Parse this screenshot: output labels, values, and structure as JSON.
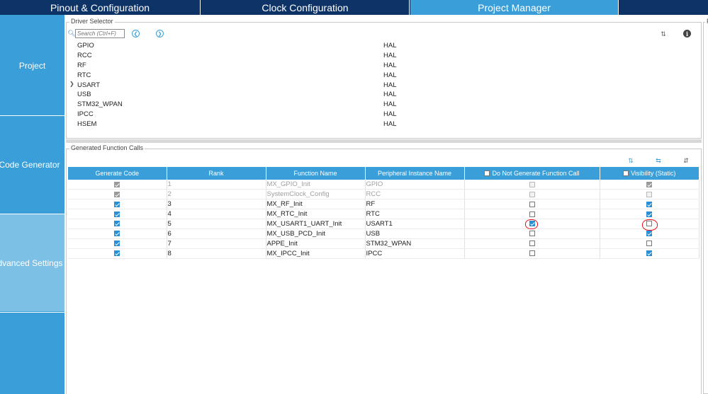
{
  "tabs": {
    "pinout": "Pinout & Configuration",
    "clock": "Clock Configuration",
    "project_manager": "Project Manager"
  },
  "sidebar": {
    "project": "Project",
    "code_generator": "Code Generator",
    "advanced_settings": "Advanced Settings"
  },
  "driver_selector": {
    "title": "Driver Selector",
    "search_placeholder": "Search (Ctrl+F)",
    "rows": [
      {
        "name": "GPIO",
        "mode": "HAL",
        "expandable": false
      },
      {
        "name": "RCC",
        "mode": "HAL",
        "expandable": false
      },
      {
        "name": "RF",
        "mode": "HAL",
        "expandable": false
      },
      {
        "name": "RTC",
        "mode": "HAL",
        "expandable": false
      },
      {
        "name": "USART",
        "mode": "HAL",
        "expandable": true
      },
      {
        "name": "USB",
        "mode": "HAL",
        "expandable": false
      },
      {
        "name": "STM32_WPAN",
        "mode": "HAL",
        "expandable": false
      },
      {
        "name": "IPCC",
        "mode": "HAL",
        "expandable": false
      },
      {
        "name": "HSEM",
        "mode": "HAL",
        "expandable": false
      }
    ]
  },
  "right_panel": {
    "title": "F"
  },
  "function_calls": {
    "title": "Generated Function Calls",
    "columns": {
      "generate_code": "Generate Code",
      "rank": "Rank",
      "function_name": "Function Name",
      "peripheral_instance": "Peripheral Instance Name",
      "do_not_generate": "Do Not Generate Function Call",
      "visibility": "Visibility (Static)"
    },
    "rows": [
      {
        "generate": true,
        "rank": "1",
        "function": "MX_GPIO_Init",
        "instance": "GPIO",
        "no_call": false,
        "visibility": true,
        "disabled": true
      },
      {
        "generate": true,
        "rank": "2",
        "function": "SystemClock_Config",
        "instance": "RCC",
        "no_call": false,
        "visibility": false,
        "disabled": true
      },
      {
        "generate": true,
        "rank": "3",
        "function": "MX_RF_Init",
        "instance": "RF",
        "no_call": false,
        "visibility": true,
        "disabled": false
      },
      {
        "generate": true,
        "rank": "4",
        "function": "MX_RTC_Init",
        "instance": "RTC",
        "no_call": false,
        "visibility": true,
        "disabled": false
      },
      {
        "generate": true,
        "rank": "5",
        "function": "MX_USART1_UART_Init",
        "instance": "USART1",
        "no_call": true,
        "visibility": false,
        "disabled": false
      },
      {
        "generate": true,
        "rank": "6",
        "function": "MX_USB_PCD_Init",
        "instance": "USB",
        "no_call": false,
        "visibility": true,
        "disabled": false
      },
      {
        "generate": true,
        "rank": "7",
        "function": "APPE_Init",
        "instance": "STM32_WPAN",
        "no_call": false,
        "visibility": false,
        "disabled": false
      },
      {
        "generate": true,
        "rank": "8",
        "function": "MX_IPCC_Init",
        "instance": "IPCC",
        "no_call": false,
        "visibility": true,
        "disabled": false
      }
    ]
  },
  "icons": {
    "search": "search-icon",
    "prev": "chevron-left-icon",
    "next": "chevron-right-icon",
    "sort": "sort-icon",
    "info": "info-icon"
  },
  "colors": {
    "accent": "#3a9fd9",
    "tab_dark": "#0e3467",
    "annotation": "#e8101a"
  }
}
